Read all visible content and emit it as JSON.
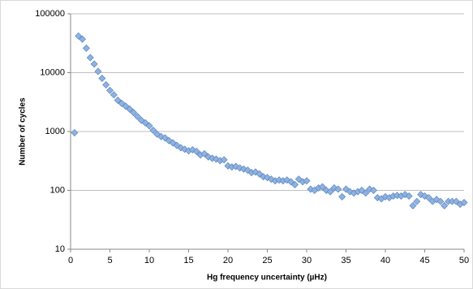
{
  "chart_data": {
    "type": "scatter",
    "x_label": "Hg frequency uncertainty (µHz)",
    "y_label": "Number of cycles",
    "log_y": true,
    "grid": true,
    "xlim": [
      0,
      50
    ],
    "xticks": [
      0,
      5,
      10,
      15,
      20,
      25,
      30,
      35,
      40,
      45,
      50
    ],
    "ylim": [
      10,
      100000
    ],
    "yticks": [
      10,
      100,
      1000,
      10000,
      100000
    ],
    "series": [
      {
        "color": "#8fb3e0",
        "x": [
          0.5,
          1,
          1.5,
          2,
          2.5,
          3,
          3.5,
          4,
          4.5,
          5,
          5.5,
          6,
          6.5,
          7,
          7.5,
          8,
          8.5,
          9,
          9.5,
          10,
          10.5,
          11,
          11.5,
          12,
          12.5,
          13,
          13.5,
          14,
          14.5,
          15,
          15.5,
          16,
          16.5,
          17,
          17.5,
          18,
          18.5,
          19,
          19.5,
          20,
          20.5,
          21,
          21.5,
          22,
          22.5,
          23,
          23.5,
          24,
          24.5,
          25,
          25.5,
          26,
          26.5,
          27,
          27.5,
          28,
          28.5,
          29,
          29.5,
          30,
          30.5,
          31,
          31.5,
          32,
          32.5,
          33,
          33.5,
          34,
          34.5,
          35,
          35.5,
          36,
          36.5,
          37,
          37.5,
          38,
          38.5,
          39,
          39.5,
          40,
          40.5,
          41,
          41.5,
          42,
          42.5,
          43,
          43.5,
          44,
          44.5,
          45,
          45.5,
          46,
          46.5,
          47,
          47.5,
          48,
          48.5,
          49,
          49.5,
          50
        ],
        "values": [
          950,
          42000,
          37000,
          26000,
          18000,
          14000,
          10500,
          8000,
          6200,
          5000,
          4200,
          3400,
          3000,
          2700,
          2400,
          2100,
          1800,
          1550,
          1400,
          1250,
          1050,
          900,
          820,
          780,
          700,
          640,
          580,
          530,
          500,
          470,
          490,
          460,
          400,
          420,
          370,
          350,
          340,
          320,
          330,
          260,
          250,
          255,
          240,
          230,
          220,
          200,
          205,
          190,
          170,
          165,
          155,
          145,
          150,
          145,
          150,
          140,
          125,
          155,
          140,
          145,
          105,
          100,
          110,
          115,
          100,
          95,
          110,
          105,
          78,
          105,
          95,
          90,
          95,
          100,
          90,
          105,
          100,
          75,
          72,
          78,
          75,
          80,
          82,
          80,
          85,
          80,
          55,
          65,
          85,
          80,
          75,
          65,
          70,
          65,
          55,
          65,
          65,
          65,
          58,
          62
        ]
      }
    ]
  }
}
